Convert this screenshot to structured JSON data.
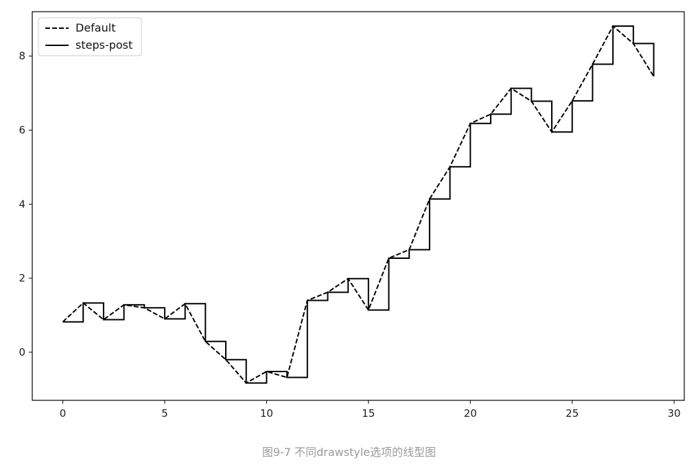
{
  "chart_data": {
    "type": "line",
    "title": "",
    "xlabel": "",
    "ylabel": "",
    "xlim": [
      -1.5,
      30.5
    ],
    "ylim": [
      -1.3,
      9.2
    ],
    "xticks": [
      0,
      5,
      10,
      15,
      20,
      25,
      30
    ],
    "yticks": [
      0,
      2,
      4,
      6,
      8
    ],
    "grid": false,
    "legend_position": "top-left",
    "x": [
      0,
      1,
      2,
      3,
      4,
      5,
      6,
      7,
      8,
      9,
      10,
      11,
      12,
      13,
      14,
      15,
      16,
      17,
      18,
      19,
      20,
      21,
      22,
      23,
      24,
      25,
      26,
      27,
      28,
      29
    ],
    "series": [
      {
        "name": "Default",
        "drawstyle": "default",
        "linestyle": "dashed",
        "color": "#000000",
        "values": [
          0.82,
          1.33,
          0.88,
          1.28,
          1.2,
          0.9,
          1.31,
          0.29,
          -0.2,
          -0.83,
          -0.52,
          -0.68,
          1.4,
          1.62,
          1.99,
          1.14,
          2.54,
          2.77,
          4.14,
          5.01,
          6.18,
          6.43,
          7.13,
          6.78,
          5.95,
          6.79,
          7.78,
          8.81,
          8.34,
          7.45
        ]
      },
      {
        "name": "steps-post",
        "drawstyle": "steps-post",
        "linestyle": "solid",
        "color": "#000000",
        "values": [
          0.82,
          1.33,
          0.88,
          1.28,
          1.2,
          0.9,
          1.31,
          0.29,
          -0.2,
          -0.83,
          -0.52,
          -0.68,
          1.4,
          1.62,
          1.99,
          1.14,
          2.54,
          2.77,
          4.14,
          5.01,
          6.18,
          6.43,
          7.13,
          6.78,
          5.95,
          6.79,
          7.78,
          8.81,
          8.34,
          7.45
        ]
      }
    ]
  },
  "caption": "图9-7 不同drawstyle选项的线型图"
}
